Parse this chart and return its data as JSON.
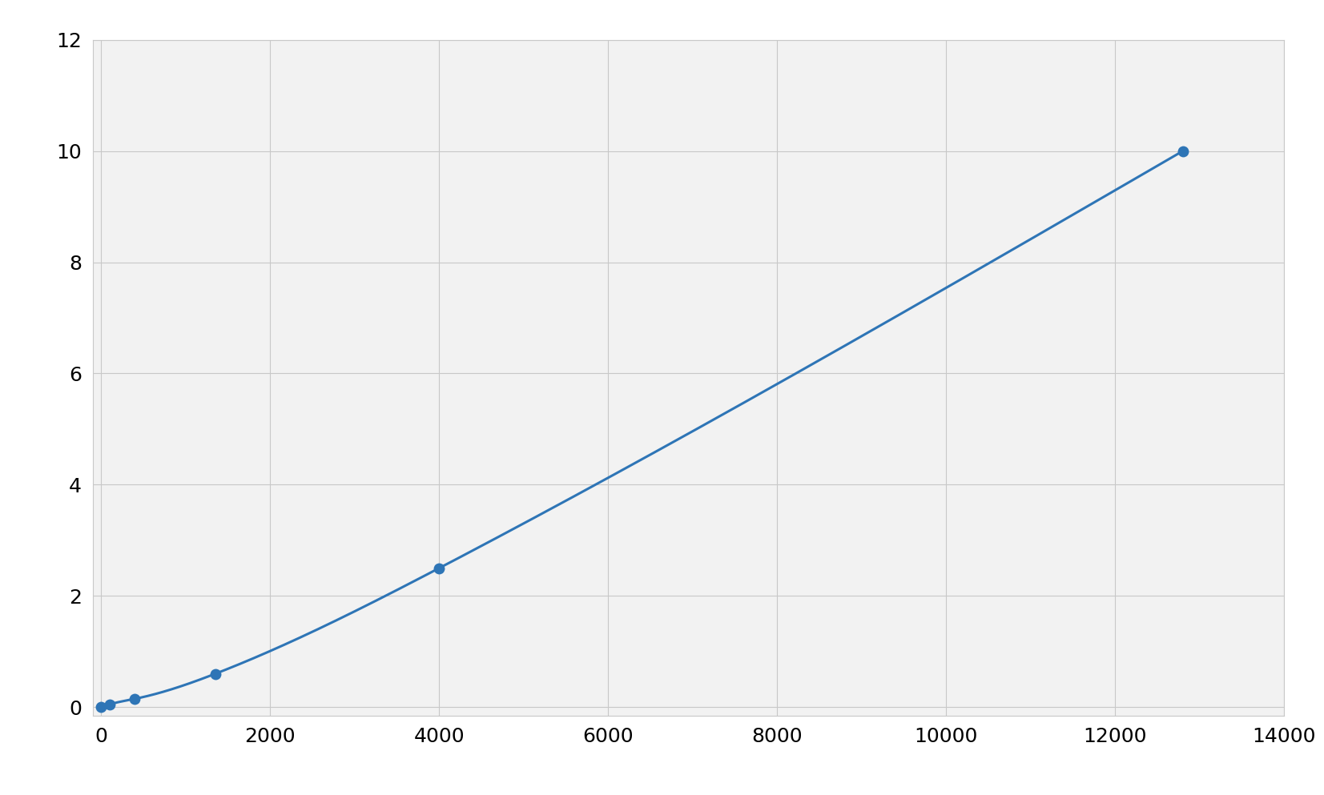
{
  "x": [
    0,
    100,
    400,
    1350,
    4000,
    12800
  ],
  "y": [
    0,
    0.05,
    0.15,
    0.6,
    2.5,
    10.0
  ],
  "line_color": "#2e75b6",
  "marker_color": "#2e75b6",
  "marker_size": 10,
  "line_width": 2.2,
  "xlim": [
    -100,
    14000
  ],
  "ylim": [
    -0.15,
    12
  ],
  "xticks": [
    0,
    2000,
    4000,
    6000,
    8000,
    10000,
    12000,
    14000
  ],
  "yticks": [
    0,
    2,
    4,
    6,
    8,
    10,
    12
  ],
  "grid_color": "#c8c8c8",
  "bg_color": "#f2f2f2",
  "fig_bg_color": "#ffffff",
  "tick_fontsize": 18
}
